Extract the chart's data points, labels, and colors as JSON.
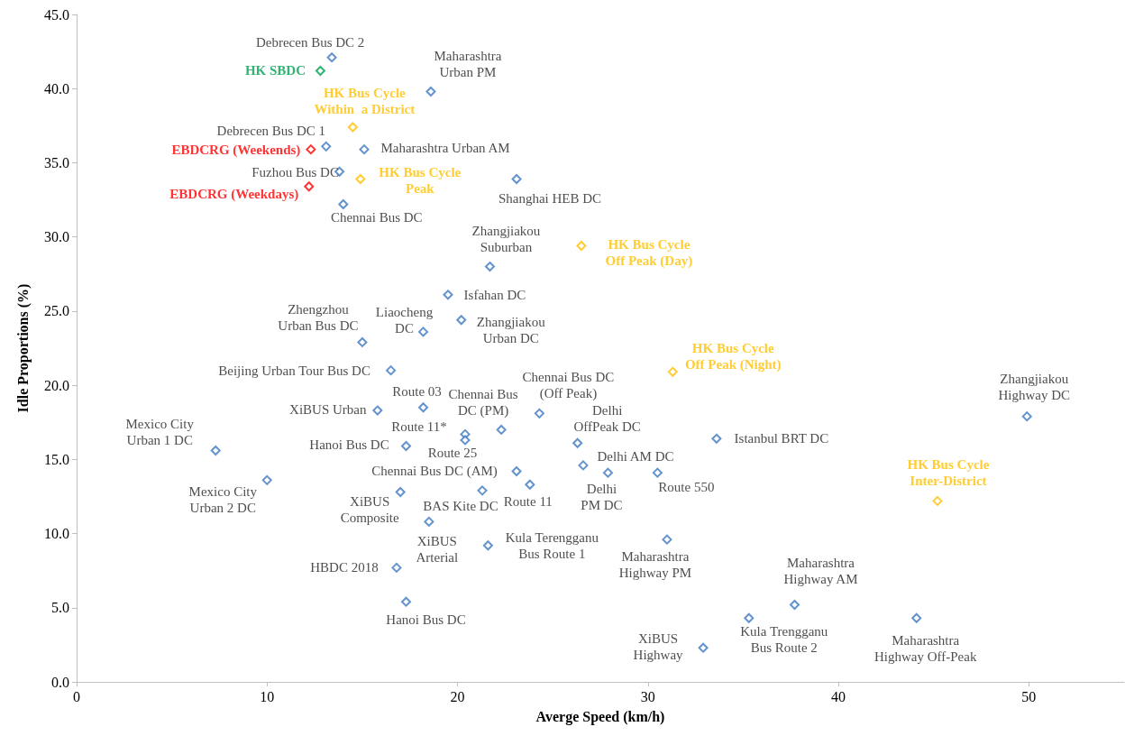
{
  "chart_data": {
    "type": "scatter",
    "xlabel": "Averge Speed (km/h)",
    "ylabel": "Idle Proportions (%)",
    "xlim": [
      0,
      55
    ],
    "xticks": [
      0,
      10,
      20,
      30,
      40,
      50
    ],
    "ylim": [
      0,
      45
    ],
    "yticks": [
      {
        "value": 0,
        "label": "0.0"
      },
      {
        "value": 5,
        "label": "5.0"
      },
      {
        "value": 10,
        "label": "10.0"
      },
      {
        "value": 15,
        "label": "15.0"
      },
      {
        "value": 20,
        "label": "20.0"
      },
      {
        "value": 25,
        "label": "25.0"
      },
      {
        "value": 30,
        "label": "30.0"
      },
      {
        "value": 35,
        "label": "35.0"
      },
      {
        "value": 40,
        "label": "40.0"
      },
      {
        "value": 45,
        "label": "45.0"
      }
    ],
    "marker": "diamond",
    "series": [
      {
        "color": "#3c78c3",
        "x": [
          13.4,
          18.6,
          13.1,
          15.1,
          13.8,
          14.0,
          23.1,
          21.7,
          19.5,
          15.0,
          18.2,
          20.2,
          16.5,
          15.8,
          18.2,
          22.3,
          24.3,
          20.4,
          20.4,
          7.3,
          17.3,
          26.3,
          33.6,
          49.9,
          10.0,
          23.1,
          23.8,
          26.6,
          27.9,
          30.5,
          17.0,
          21.3,
          18.5,
          21.6,
          31.0,
          16.8,
          17.3,
          32.9,
          35.3,
          37.7,
          44.1
        ],
        "values": [
          42.1,
          39.8,
          36.1,
          35.9,
          34.4,
          32.2,
          33.9,
          28.0,
          26.1,
          22.9,
          23.6,
          24.4,
          21.0,
          18.3,
          18.5,
          17.0,
          18.1,
          16.7,
          16.3,
          15.6,
          15.9,
          16.1,
          16.4,
          17.9,
          13.6,
          14.2,
          13.3,
          14.6,
          14.1,
          14.1,
          12.8,
          12.9,
          10.8,
          9.2,
          9.6,
          7.7,
          5.4,
          2.3,
          4.3,
          5.2,
          4.3
        ],
        "value_labels": [
          "Debrecen Bus DC 2",
          "Maharashtra\nUrban PM",
          "Debrecen Bus DC 1",
          "Maharashtra Urban AM",
          "Fuzhou Bus DC",
          "Chennai Bus DC",
          "Shanghai HEB DC",
          "Zhangjiakou\nSuburban",
          "Isfahan DC",
          "Zhengzhou\nUrban Bus DC",
          "Liaocheng\nDC",
          "Zhangjiakou\nUrban DC",
          "Beijing Urban Tour Bus DC",
          "XiBUS Urban",
          "Route 03",
          "Chennai Bus\nDC (PM)",
          "Chennai Bus DC\n(Off Peak)",
          "Route 11*",
          "Route 25",
          "Mexico City\nUrban 1 DC",
          "Hanoi Bus DC",
          "Delhi\nOffPeak DC",
          "Istanbul BRT DC",
          "Zhangjiakou\nHighway DC",
          "Mexico City\nUrban 2 DC",
          "Chennai Bus DC (AM)",
          "Route 11",
          "Delhi AM DC",
          "Delhi\nPM DC",
          "Route 550",
          "XiBUS\nComposite",
          "BAS Kite DC",
          "XiBUS\nArterial",
          "Kula Terengganu\nBus Route 1",
          "Maharashtra\nHighway PM",
          "HBDC 2018",
          "Hanoi Bus DC",
          "XiBUS\nHighway",
          "Kula Trengganu\nBus Route 2",
          "Maharashtra\nHighway AM",
          "Maharashtra\nHighway Off-Peak"
        ]
      },
      {
        "color": "#ffc000",
        "x": [
          14.5,
          14.9,
          26.5,
          31.3,
          45.2
        ],
        "values": [
          37.4,
          33.9,
          29.4,
          20.9,
          12.2
        ],
        "value_labels": [
          "HK Bus Cycle\nWithin  a District",
          "HK Bus Cycle\nPeak",
          "HK Bus Cycle\nOff Peak (Day)",
          "HK Bus Cycle\nOff Peak (Night)",
          "HK Bus Cycle\nInter-District"
        ]
      },
      {
        "color": "#ff0000",
        "x": [
          12.3,
          12.2
        ],
        "values": [
          35.9,
          33.4
        ],
        "value_labels": [
          "EBDCRG (Weekends)",
          "EBDCRG (Weekdays)"
        ]
      },
      {
        "color": "#00a050",
        "x": [
          12.8
        ],
        "values": [
          41.2
        ],
        "value_labels": [
          "HK SBDC"
        ]
      }
    ]
  }
}
